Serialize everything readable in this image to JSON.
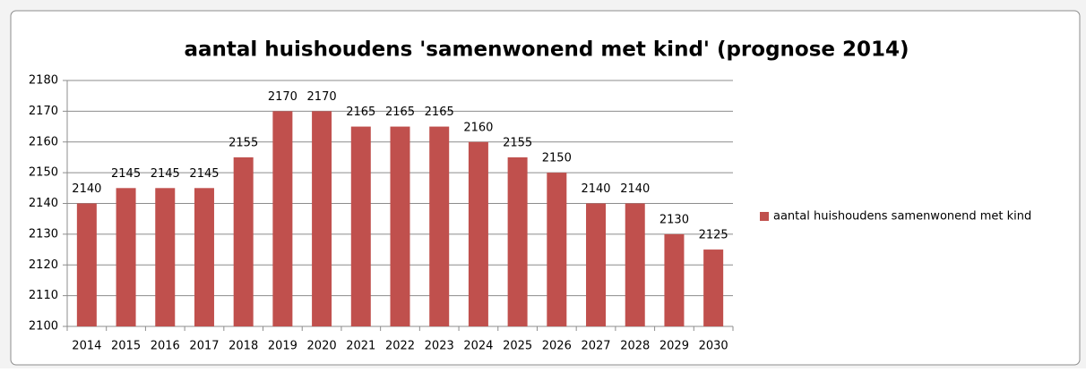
{
  "chart_data": {
    "type": "bar",
    "title": "aantal huishoudens 'samenwonend met kind' (prognose 2014)",
    "categories": [
      "2014",
      "2015",
      "2016",
      "2017",
      "2018",
      "2019",
      "2020",
      "2021",
      "2022",
      "2023",
      "2024",
      "2025",
      "2026",
      "2027",
      "2028",
      "2029",
      "2030"
    ],
    "series": [
      {
        "name": "aantal huishoudens samenwonend met kind",
        "color": "#c0504d",
        "values": [
          2140,
          2145,
          2145,
          2145,
          2155,
          2170,
          2170,
          2165,
          2165,
          2165,
          2160,
          2155,
          2150,
          2140,
          2140,
          2130,
          2125
        ]
      }
    ],
    "ylim": [
      2100,
      2180
    ],
    "yticks": [
      2100,
      2110,
      2120,
      2130,
      2140,
      2150,
      2160,
      2170,
      2180
    ],
    "grid": true,
    "legend": "right"
  }
}
